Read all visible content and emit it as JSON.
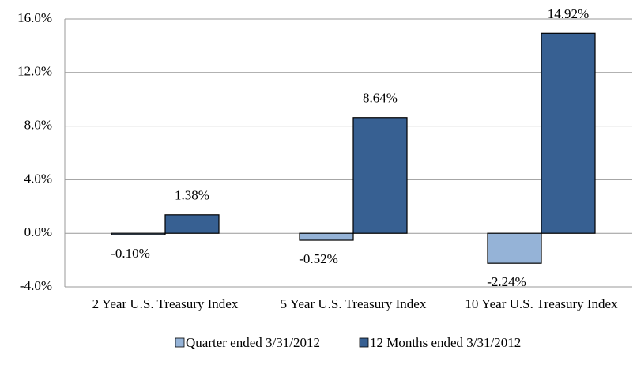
{
  "chart_data": {
    "type": "bar",
    "categories": [
      "2 Year U.S. Treasury Index",
      "5 Year U.S. Treasury Index",
      "10 Year U.S. Treasury Index"
    ],
    "series": [
      {
        "name": "Quarter ended 3/31/2012",
        "color": "#95b3d7",
        "values": [
          -0.1,
          -0.52,
          -2.24
        ],
        "value_labels": [
          "-0.10%",
          "-0.52%",
          "-2.24%"
        ]
      },
      {
        "name": "12 Months ended 3/31/2012",
        "color": "#376092",
        "values": [
          1.38,
          8.64,
          14.92
        ],
        "value_labels": [
          "1.38%",
          "8.64%",
          "14.92%"
        ]
      }
    ],
    "ylim": [
      -4,
      16
    ],
    "yticks": [
      {
        "value": -4,
        "label": "-4.0%"
      },
      {
        "value": 0,
        "label": "0.0%"
      },
      {
        "value": 4,
        "label": "4.0%"
      },
      {
        "value": 8,
        "label": "8.0%"
      },
      {
        "value": 12,
        "label": "12.0%"
      },
      {
        "value": 16,
        "label": "16.0%"
      }
    ],
    "grid": true,
    "legend": "bottom"
  }
}
